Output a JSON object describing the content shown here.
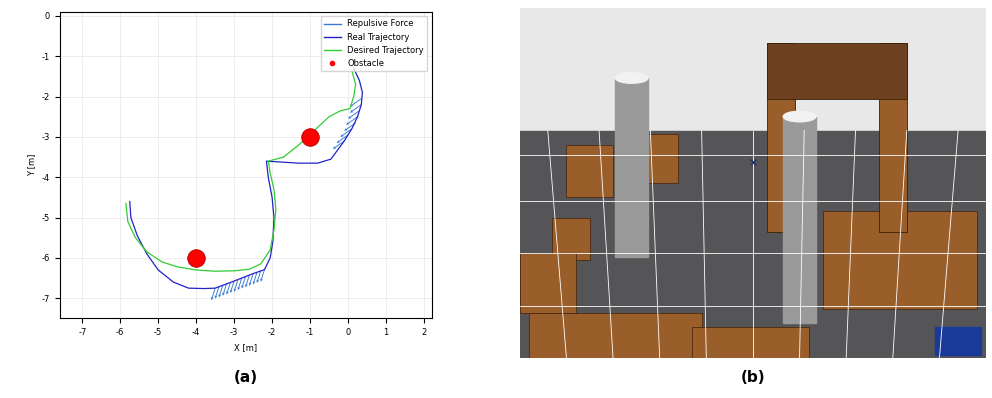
{
  "chart_data": {
    "type": "line",
    "caption": "(a)",
    "x_label": "X [m]",
    "y_label": "Y [m]",
    "xlim": [
      -7.6,
      2.2
    ],
    "ylim": [
      -7.5,
      0.1
    ],
    "xticks": [
      -7,
      -6,
      -5,
      -4,
      -3,
      -2,
      -1,
      0,
      1,
      2
    ],
    "yticks": [
      -7,
      -6,
      -5,
      -4,
      -3,
      -2,
      -1,
      0
    ],
    "grid": true,
    "legend": "upper right",
    "series": [
      {
        "name": "Repulsive Force",
        "type": "quiver",
        "color": "#3a7bd5",
        "x": [
          -3.5,
          -3.4,
          -3.3,
          -3.2,
          -3.1,
          -3.0,
          -2.9,
          -2.8,
          -2.7,
          -2.6,
          -2.5,
          -2.4,
          -2.3,
          -2.2,
          -0.1,
          0.0,
          0.1,
          0.2,
          0.25,
          0.3,
          0.35,
          0.35
        ],
        "y": [
          -6.75,
          -6.71,
          -6.68,
          -6.64,
          -6.61,
          -6.57,
          -6.54,
          -6.5,
          -6.46,
          -6.43,
          -6.39,
          -6.36,
          -6.32,
          -6.29,
          -3.1,
          -2.95,
          -2.8,
          -2.65,
          -2.5,
          -2.35,
          -2.2,
          -2.05
        ],
        "u": [
          -0.1,
          -0.1,
          -0.1,
          -0.1,
          -0.1,
          -0.1,
          -0.1,
          -0.1,
          -0.1,
          -0.1,
          -0.1,
          -0.1,
          -0.1,
          -0.1,
          -0.3,
          -0.3,
          -0.3,
          -0.3,
          -0.3,
          -0.3,
          -0.3,
          -0.3
        ],
        "v": [
          -0.3,
          -0.3,
          -0.3,
          -0.3,
          -0.3,
          -0.3,
          -0.3,
          -0.3,
          -0.3,
          -0.3,
          -0.3,
          -0.3,
          -0.3,
          -0.3,
          -0.2,
          -0.2,
          -0.2,
          -0.2,
          -0.2,
          -0.2,
          -0.2,
          -0.2
        ]
      },
      {
        "name": "Real Trajectory",
        "type": "line",
        "color": "#2222c8",
        "line_style": "solid",
        "x": [
          -5.75,
          -5.72,
          -5.55,
          -5.3,
          -5.0,
          -4.6,
          -4.2,
          -3.8,
          -3.5,
          -3.1,
          -2.8,
          -2.5,
          -2.2,
          -2.05,
          -1.98,
          -1.95,
          -2.0,
          -2.1,
          -2.15,
          -1.8,
          -1.3,
          -0.8,
          -0.45,
          -0.1,
          0.1,
          0.25,
          0.35,
          0.38,
          0.3,
          0.15
        ],
        "y": [
          -4.6,
          -5.0,
          -5.45,
          -5.9,
          -6.3,
          -6.6,
          -6.75,
          -6.76,
          -6.75,
          -6.61,
          -6.5,
          -6.39,
          -6.29,
          -6.0,
          -5.6,
          -5.0,
          -4.5,
          -4.0,
          -3.6,
          -3.62,
          -3.65,
          -3.65,
          -3.55,
          -3.1,
          -2.8,
          -2.5,
          -2.2,
          -1.9,
          -1.6,
          -1.3
        ]
      },
      {
        "name": "Desired Trajectory",
        "type": "line",
        "color": "#33cc33",
        "line_style": "solid",
        "x": [
          -5.85,
          -5.8,
          -5.6,
          -5.3,
          -4.9,
          -4.5,
          -4.0,
          -3.5,
          -3.0,
          -2.6,
          -2.3,
          -2.05,
          -1.95,
          -1.9,
          -1.95,
          -2.05,
          -2.1,
          -1.7,
          -1.3,
          -0.9,
          -0.5,
          -0.2,
          0.05,
          0.15,
          0.2,
          0.1
        ],
        "y": [
          -4.65,
          -5.1,
          -5.5,
          -5.85,
          -6.1,
          -6.22,
          -6.3,
          -6.33,
          -6.32,
          -6.28,
          -6.15,
          -5.8,
          -5.3,
          -4.8,
          -4.3,
          -3.9,
          -3.6,
          -3.5,
          -3.2,
          -2.85,
          -2.5,
          -2.35,
          -2.3,
          -2.0,
          -1.7,
          -1.35
        ]
      },
      {
        "name": "Obstacle",
        "type": "scatter",
        "color": "#ff0000",
        "marker": "o",
        "x": [
          -1,
          -4
        ],
        "y": [
          -3,
          -6
        ]
      }
    ]
  },
  "image": {
    "caption": "(b)"
  }
}
